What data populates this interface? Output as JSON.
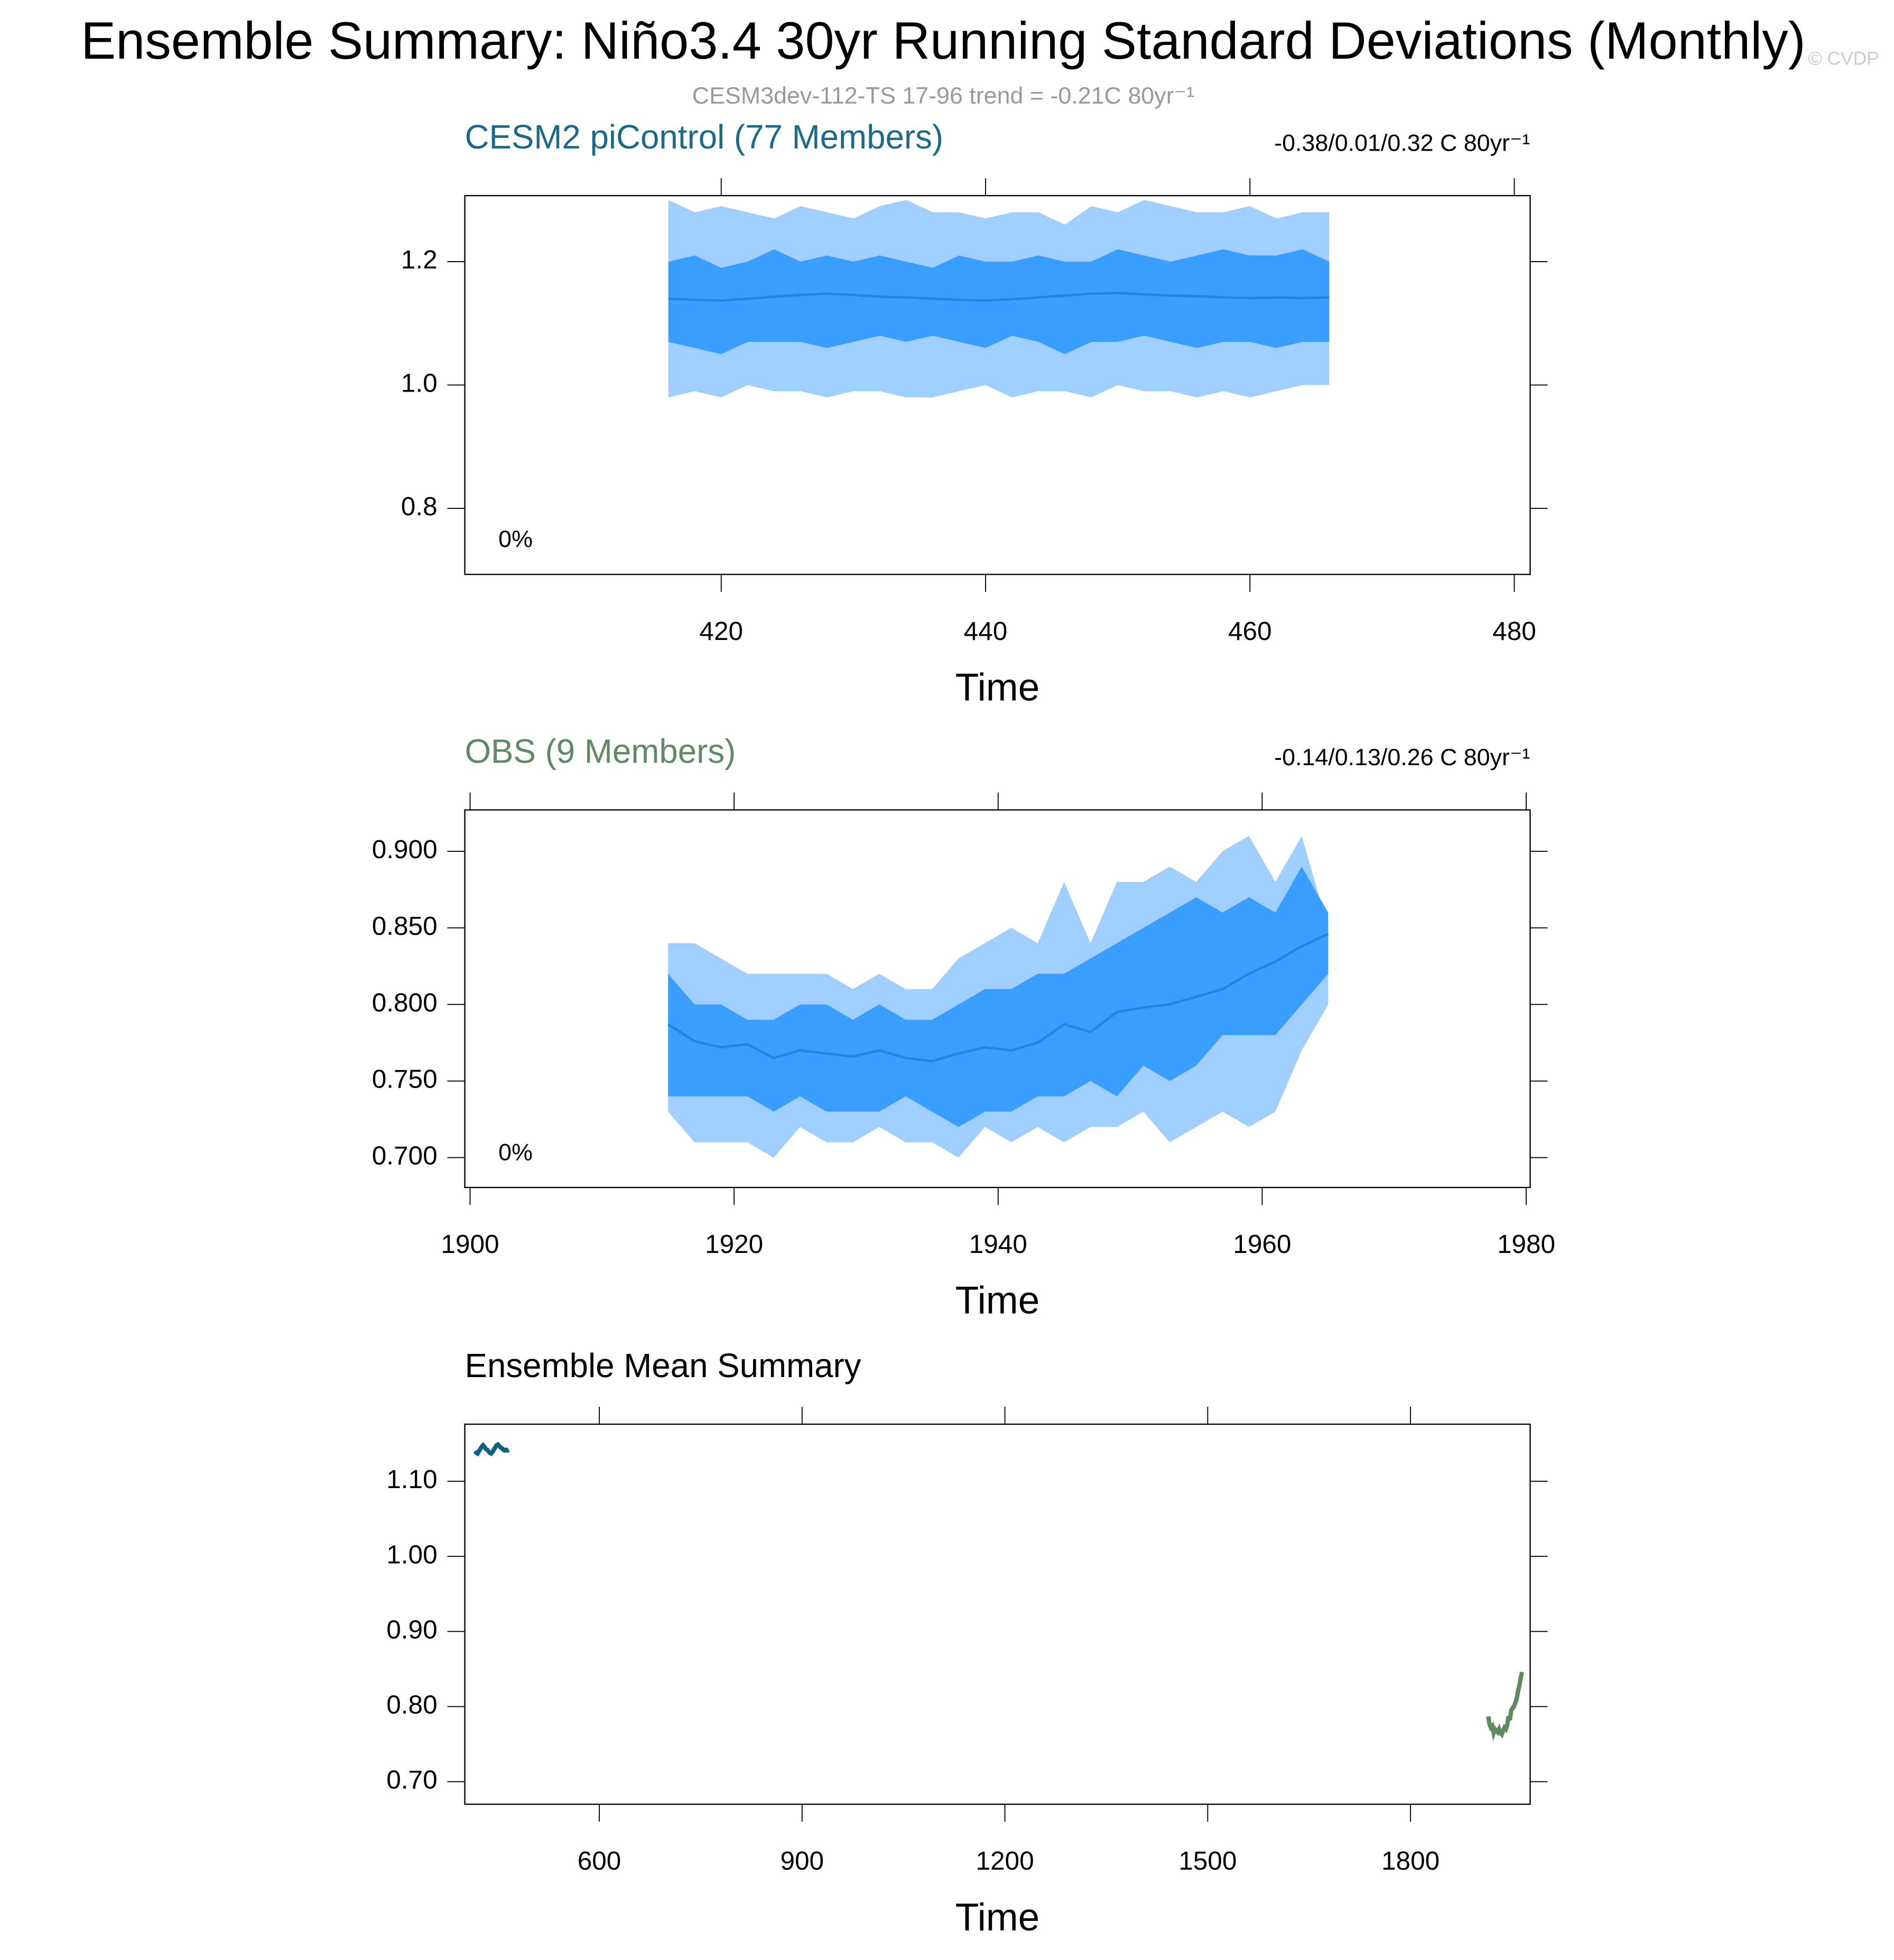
{
  "title": "Ensemble Summary: Niño3.4 30yr Running Standard Deviations (Monthly)",
  "subtitle": "CESM3dev-112-TS 17-96 trend = -0.21C 80yr⁻¹",
  "credit": "© CVDP",
  "chart_data": [
    {
      "type": "line",
      "title": "CESM2 piControl (77 Members)",
      "title_color": "#1a6a8a",
      "annotation": "-0.38/0.01/0.32 C 80yr⁻¹",
      "percent": "0%",
      "x_label": "Time",
      "xlim": [
        400.6,
        481.2
      ],
      "xticks": [
        420,
        440,
        460,
        480
      ],
      "ylim": [
        0.693,
        1.307
      ],
      "yticks": [
        0.8,
        {
          "value": 1,
          "label": "1.0"
        },
        1.2
      ],
      "x": [
        416,
        418,
        420,
        422,
        424,
        426,
        428,
        430,
        432,
        434,
        436,
        438,
        440,
        442,
        444,
        446,
        448,
        450,
        452,
        454,
        456,
        458,
        460,
        462,
        464,
        466
      ],
      "bands": [
        {
          "color": "#a0cfff",
          "upper": [
            1.3,
            1.28,
            1.29,
            1.28,
            1.27,
            1.29,
            1.28,
            1.27,
            1.29,
            1.3,
            1.28,
            1.28,
            1.27,
            1.28,
            1.28,
            1.26,
            1.29,
            1.28,
            1.3,
            1.29,
            1.28,
            1.28,
            1.29,
            1.27,
            1.28,
            1.28
          ],
          "lower": [
            0.98,
            0.99,
            0.98,
            1.0,
            0.99,
            0.99,
            0.98,
            0.99,
            0.99,
            0.98,
            0.98,
            0.99,
            1.0,
            0.98,
            0.99,
            0.99,
            0.98,
            1.0,
            0.99,
            0.99,
            0.98,
            0.99,
            0.98,
            0.99,
            1.0,
            1.0
          ]
        },
        {
          "color": "#3a9eff",
          "upper": [
            1.2,
            1.21,
            1.19,
            1.2,
            1.22,
            1.2,
            1.21,
            1.2,
            1.21,
            1.2,
            1.19,
            1.21,
            1.2,
            1.2,
            1.21,
            1.2,
            1.2,
            1.22,
            1.21,
            1.2,
            1.21,
            1.22,
            1.21,
            1.21,
            1.22,
            1.2
          ],
          "lower": [
            1.07,
            1.06,
            1.05,
            1.07,
            1.07,
            1.07,
            1.06,
            1.07,
            1.08,
            1.07,
            1.08,
            1.07,
            1.06,
            1.08,
            1.07,
            1.05,
            1.07,
            1.07,
            1.08,
            1.07,
            1.06,
            1.07,
            1.07,
            1.06,
            1.07,
            1.07
          ]
        }
      ],
      "series": [
        {
          "color": "#1e88dd",
          "values": [
            1.14,
            1.138,
            1.137,
            1.14,
            1.143,
            1.146,
            1.148,
            1.146,
            1.143,
            1.142,
            1.14,
            1.138,
            1.137,
            1.139,
            1.142,
            1.145,
            1.148,
            1.149,
            1.147,
            1.145,
            1.144,
            1.142,
            1.141,
            1.142,
            1.141,
            1.142
          ]
        }
      ]
    },
    {
      "type": "line",
      "title": "OBS (9 Members)",
      "title_color": "#5e8a66",
      "annotation": "-0.14/0.13/0.26 C 80yr⁻¹",
      "percent": "0%",
      "x_label": "Time",
      "xlim": [
        1899.6,
        1980.3
      ],
      "xticks": [
        1900,
        1920,
        1940,
        1960,
        1980
      ],
      "ylim": [
        0.6805,
        0.927
      ],
      "yticks": [
        {
          "value": 0.7,
          "label": "0.700"
        },
        {
          "value": 0.75,
          "label": "0.750"
        },
        {
          "value": 0.8,
          "label": "0.800"
        },
        {
          "value": 0.85,
          "label": "0.850"
        },
        {
          "value": 0.9,
          "label": "0.900"
        }
      ],
      "x": [
        1915,
        1917,
        1919,
        1921,
        1923,
        1925,
        1927,
        1929,
        1931,
        1933,
        1935,
        1937,
        1939,
        1941,
        1943,
        1945,
        1947,
        1949,
        1951,
        1953,
        1955,
        1957,
        1959,
        1961,
        1963,
        1965
      ],
      "bands": [
        {
          "color": "#a0cfff",
          "upper": [
            0.84,
            0.84,
            0.83,
            0.82,
            0.82,
            0.82,
            0.82,
            0.81,
            0.82,
            0.81,
            0.81,
            0.83,
            0.84,
            0.85,
            0.84,
            0.88,
            0.84,
            0.88,
            0.88,
            0.89,
            0.88,
            0.9,
            0.91,
            0.88,
            0.91,
            0.85
          ],
          "lower": [
            0.73,
            0.71,
            0.71,
            0.71,
            0.7,
            0.72,
            0.71,
            0.71,
            0.72,
            0.71,
            0.71,
            0.7,
            0.72,
            0.71,
            0.72,
            0.71,
            0.72,
            0.72,
            0.73,
            0.71,
            0.72,
            0.73,
            0.72,
            0.73,
            0.77,
            0.8
          ]
        },
        {
          "color": "#3a9eff",
          "upper": [
            0.82,
            0.8,
            0.8,
            0.79,
            0.79,
            0.8,
            0.8,
            0.79,
            0.8,
            0.79,
            0.79,
            0.8,
            0.81,
            0.81,
            0.82,
            0.82,
            0.83,
            0.84,
            0.85,
            0.86,
            0.87,
            0.86,
            0.87,
            0.86,
            0.89,
            0.86
          ],
          "lower": [
            0.74,
            0.74,
            0.74,
            0.74,
            0.73,
            0.74,
            0.73,
            0.73,
            0.73,
            0.74,
            0.73,
            0.72,
            0.73,
            0.73,
            0.74,
            0.74,
            0.75,
            0.74,
            0.76,
            0.75,
            0.76,
            0.78,
            0.78,
            0.78,
            0.8,
            0.82
          ]
        }
      ],
      "series": [
        {
          "color": "#1e88dd",
          "values": [
            0.787,
            0.776,
            0.772,
            0.774,
            0.765,
            0.77,
            0.768,
            0.766,
            0.77,
            0.765,
            0.763,
            0.768,
            0.772,
            0.77,
            0.775,
            0.787,
            0.782,
            0.795,
            0.798,
            0.8,
            0.805,
            0.81,
            0.82,
            0.828,
            0.838,
            0.846
          ]
        }
      ]
    },
    {
      "type": "line",
      "title": "Ensemble Mean Summary",
      "title_color": "#000000",
      "x_label": "Time",
      "xlim": [
        401,
        1977
      ],
      "xticks": [
        600,
        900,
        1200,
        1500,
        1800
      ],
      "ylim": [
        0.67,
        1.176
      ],
      "yticks": [
        {
          "value": 0.7,
          "label": "0.70"
        },
        {
          "value": 0.8,
          "label": "0.80"
        },
        {
          "value": 0.9,
          "label": "0.90"
        },
        {
          "value": 1,
          "label": "1.00"
        },
        {
          "value": 1.1,
          "label": "1.10"
        }
      ],
      "series": [
        {
          "color": "#0c6382",
          "x": [
            416,
            418,
            420,
            422,
            424,
            426,
            428,
            430,
            432,
            434,
            436,
            438,
            440,
            442,
            444,
            446,
            448,
            450,
            452,
            454,
            456,
            458,
            460,
            462,
            464,
            466
          ],
          "values": [
            1.14,
            1.138,
            1.137,
            1.14,
            1.143,
            1.146,
            1.148,
            1.146,
            1.143,
            1.142,
            1.14,
            1.138,
            1.137,
            1.139,
            1.142,
            1.145,
            1.148,
            1.149,
            1.147,
            1.145,
            1.144,
            1.142,
            1.141,
            1.142,
            1.141,
            1.142
          ]
        },
        {
          "color": "#5e8a5e",
          "x": [
            1915,
            1917,
            1919,
            1921,
            1923,
            1925,
            1927,
            1929,
            1931,
            1933,
            1935,
            1937,
            1939,
            1941,
            1943,
            1945,
            1947,
            1949,
            1951,
            1953,
            1955,
            1957,
            1959,
            1961,
            1963,
            1965
          ],
          "values": [
            0.787,
            0.776,
            0.772,
            0.774,
            0.765,
            0.77,
            0.768,
            0.766,
            0.77,
            0.765,
            0.763,
            0.768,
            0.772,
            0.77,
            0.775,
            0.787,
            0.782,
            0.795,
            0.798,
            0.8,
            0.805,
            0.81,
            0.82,
            0.828,
            0.838,
            0.846
          ]
        }
      ]
    }
  ]
}
